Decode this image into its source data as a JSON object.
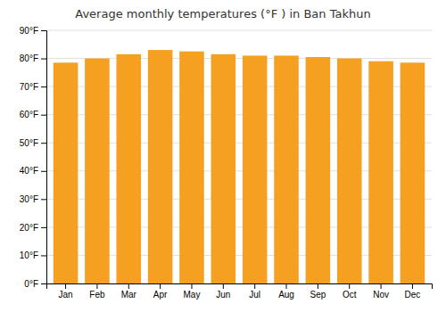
{
  "chart_data": {
    "type": "bar",
    "title": "Average monthly temperatures (°F ) in Ban Takhun",
    "categories": [
      "Jan",
      "Feb",
      "Mar",
      "Apr",
      "May",
      "Jun",
      "Jul",
      "Aug",
      "Sep",
      "Oct",
      "Nov",
      "Dec"
    ],
    "values": [
      78.5,
      80.0,
      81.5,
      83.0,
      82.5,
      81.5,
      81.0,
      81.0,
      80.5,
      80.0,
      79.0,
      78.5
    ],
    "color": "#F5A020",
    "ylim": [
      0,
      90
    ],
    "yticks": [
      {
        "value": 0,
        "label": "0°F"
      },
      {
        "value": 10,
        "label": "10°F"
      },
      {
        "value": 20,
        "label": "20°F"
      },
      {
        "value": 30,
        "label": "30°F"
      },
      {
        "value": 40,
        "label": "40°F"
      },
      {
        "value": 50,
        "label": "50°F"
      },
      {
        "value": 60,
        "label": "60°F"
      },
      {
        "value": 70,
        "label": "70°F"
      },
      {
        "value": 80,
        "label": "80°F"
      },
      {
        "value": 90,
        "label": "90°F"
      }
    ],
    "grid": true
  }
}
